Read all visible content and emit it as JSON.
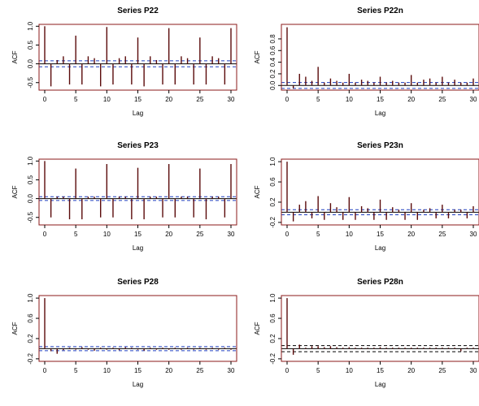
{
  "chart_data": [
    {
      "type": "bar",
      "title": "Series  P22",
      "xlabel": "Lag",
      "ylabel": "ACF",
      "xlim": [
        0,
        30
      ],
      "ylim": [
        -0.7,
        1.05
      ],
      "xticks": [
        0,
        5,
        10,
        15,
        20,
        25,
        30
      ],
      "xtick_labels": [
        "0",
        "5",
        "10",
        "15",
        "20",
        "25",
        "30"
      ],
      "yticks": [
        -0.5,
        0.0,
        0.5,
        1.0
      ],
      "ytick_labels": [
        "-0.5",
        "0.0",
        "0.5",
        "1.0"
      ],
      "conf_upper": 0.08,
      "conf_lower": -0.08,
      "colors": {
        "frame": "#8b1a1a",
        "bars": "#5a0a0a",
        "conf": "#1f3fbf"
      },
      "lags": [
        0,
        1,
        2,
        3,
        4,
        5,
        6,
        7,
        8,
        9,
        10,
        11,
        12,
        13,
        14,
        15,
        16,
        17,
        18,
        19,
        20,
        21,
        22,
        23,
        24,
        25,
        26,
        27,
        28,
        29,
        30
      ],
      "values": [
        1.0,
        -0.6,
        0.1,
        0.2,
        -0.55,
        0.75,
        -0.55,
        0.2,
        0.15,
        -0.6,
        0.98,
        -0.55,
        0.15,
        0.2,
        -0.55,
        0.7,
        -0.6,
        0.2,
        0.1,
        -0.55,
        0.95,
        -0.55,
        0.2,
        0.15,
        -0.55,
        0.7,
        -0.55,
        0.2,
        0.15,
        -0.55,
        0.95
      ]
    },
    {
      "type": "bar",
      "title": "Series  P22n",
      "xlabel": "Lag",
      "ylabel": "ACF",
      "xlim": [
        0,
        30
      ],
      "ylim": [
        -0.08,
        1.05
      ],
      "xticks": [
        0,
        5,
        10,
        15,
        20,
        25,
        30
      ],
      "xtick_labels": [
        "0",
        "5",
        "10",
        "15",
        "20",
        "25",
        "30"
      ],
      "yticks": [
        0.0,
        0.2,
        0.4,
        0.6,
        0.8
      ],
      "ytick_labels": [
        "0.0",
        "0.2",
        "0.4",
        "0.6",
        "0.8"
      ],
      "conf_upper": 0.05,
      "conf_lower": -0.05,
      "colors": {
        "frame": "#8b1a1a",
        "bars": "#5a0a0a",
        "conf": "#1f3fbf"
      },
      "lags": [
        0,
        1,
        2,
        3,
        4,
        5,
        6,
        7,
        8,
        9,
        10,
        11,
        12,
        13,
        14,
        15,
        16,
        17,
        18,
        19,
        20,
        21,
        22,
        23,
        24,
        25,
        26,
        27,
        28,
        29,
        30
      ],
      "values": [
        1.0,
        -0.05,
        0.2,
        0.15,
        0.08,
        0.32,
        0.05,
        0.12,
        0.08,
        0.05,
        0.2,
        0.05,
        0.1,
        0.08,
        0.05,
        0.15,
        0.05,
        0.08,
        0.05,
        0.05,
        0.18,
        0.05,
        0.1,
        0.12,
        0.05,
        0.15,
        0.05,
        0.1,
        0.05,
        0.05,
        0.12
      ]
    },
    {
      "type": "bar",
      "title": "Series  P23",
      "xlabel": "Lag",
      "ylabel": "ACF",
      "xlim": [
        0,
        30
      ],
      "ylim": [
        -0.7,
        1.05
      ],
      "xticks": [
        0,
        5,
        10,
        15,
        20,
        25,
        30
      ],
      "xtick_labels": [
        "0",
        "5",
        "10",
        "15",
        "20",
        "25",
        "30"
      ],
      "yticks": [
        -0.5,
        0.0,
        0.5,
        1.0
      ],
      "ytick_labels": [
        "-0.5",
        "0.0",
        "0.5",
        "1.0"
      ],
      "conf_upper": 0.05,
      "conf_lower": -0.05,
      "colors": {
        "frame": "#8b1a1a",
        "bars": "#5a0a0a",
        "conf": "#1f3fbf"
      },
      "lags": [
        0,
        1,
        2,
        3,
        4,
        5,
        6,
        7,
        8,
        9,
        10,
        11,
        12,
        13,
        14,
        15,
        16,
        17,
        18,
        19,
        20,
        21,
        22,
        23,
        24,
        25,
        26,
        27,
        28,
        29,
        30
      ],
      "values": [
        1.0,
        -0.5,
        0.05,
        0.05,
        -0.55,
        0.8,
        -0.55,
        0.05,
        0.05,
        -0.5,
        0.92,
        -0.5,
        0.05,
        0.05,
        -0.55,
        0.82,
        -0.55,
        0.05,
        0.05,
        -0.5,
        0.92,
        -0.5,
        0.05,
        0.05,
        -0.5,
        0.8,
        -0.55,
        0.05,
        0.05,
        -0.5,
        0.92
      ]
    },
    {
      "type": "bar",
      "title": "Series  P23n",
      "xlabel": "Lag",
      "ylabel": "ACF",
      "xlim": [
        0,
        30
      ],
      "ylim": [
        -0.25,
        1.05
      ],
      "xticks": [
        0,
        5,
        10,
        15,
        20,
        25,
        30
      ],
      "xtick_labels": [
        "0",
        "5",
        "10",
        "15",
        "20",
        "25",
        "30"
      ],
      "yticks": [
        -0.2,
        0.2,
        0.6,
        1.0
      ],
      "ytick_labels": [
        "-0.2",
        "0.2",
        "0.6",
        "1.0"
      ],
      "conf_upper": 0.05,
      "conf_lower": -0.05,
      "colors": {
        "frame": "#8b1a1a",
        "bars": "#5a0a0a",
        "conf": "#1f3fbf"
      },
      "lags": [
        0,
        1,
        2,
        3,
        4,
        5,
        6,
        7,
        8,
        9,
        10,
        11,
        12,
        13,
        14,
        15,
        16,
        17,
        18,
        19,
        20,
        21,
        22,
        23,
        24,
        25,
        26,
        27,
        28,
        29,
        30
      ],
      "values": [
        1.0,
        -0.18,
        0.15,
        0.22,
        -0.12,
        0.32,
        -0.15,
        0.18,
        0.1,
        -0.15,
        0.3,
        -0.15,
        0.12,
        0.08,
        -0.15,
        0.25,
        -0.15,
        0.1,
        0.05,
        -0.15,
        0.18,
        -0.15,
        0.05,
        0.08,
        -0.12,
        0.15,
        -0.12,
        0.05,
        0.05,
        -0.12,
        0.12
      ]
    },
    {
      "type": "bar",
      "title": "Series  P28",
      "xlabel": "Lag",
      "ylabel": "ACF",
      "xlim": [
        0,
        30
      ],
      "ylim": [
        -0.25,
        1.05
      ],
      "xticks": [
        0,
        5,
        10,
        15,
        20,
        25,
        30
      ],
      "xtick_labels": [
        "0",
        "5",
        "10",
        "15",
        "20",
        "25",
        "30"
      ],
      "yticks": [
        -0.2,
        0.2,
        0.6,
        1.0
      ],
      "ytick_labels": [
        "-0.2",
        "0.2",
        "0.6",
        "1.0"
      ],
      "conf_upper": 0.04,
      "conf_lower": -0.04,
      "colors": {
        "frame": "#8b1a1a",
        "bars": "#5a0a0a",
        "conf": "#1f3fbf"
      },
      "lags": [
        0,
        1,
        2,
        3,
        4,
        5,
        6,
        7,
        8,
        9,
        10,
        11,
        12,
        13,
        14,
        15,
        16,
        17,
        18,
        19,
        20,
        21,
        22,
        23,
        24,
        25,
        26,
        27,
        28,
        29,
        30
      ],
      "values": [
        1.0,
        -0.05,
        -0.1,
        -0.03,
        0.02,
        -0.02,
        0.03,
        -0.02,
        -0.04,
        0.02,
        -0.02,
        0.02,
        -0.03,
        0.03,
        0.02,
        -0.02,
        -0.04,
        0.02,
        -0.02,
        0.02,
        -0.02,
        0.02,
        -0.02,
        0.02,
        -0.02,
        0.02,
        -0.02,
        0.02,
        -0.02,
        0.02,
        -0.02
      ]
    },
    {
      "type": "bar",
      "title": "Series  P28n",
      "xlabel": "Lag",
      "ylabel": "ACF",
      "xlim": [
        0,
        30
      ],
      "ylim": [
        -0.25,
        1.05
      ],
      "xticks": [
        0,
        5,
        10,
        15,
        20,
        25,
        30
      ],
      "xtick_labels": [
        "0",
        "5",
        "10",
        "15",
        "20",
        "25",
        "30"
      ],
      "yticks": [
        -0.2,
        0.2,
        0.6,
        1.0
      ],
      "ytick_labels": [
        "-0.2",
        "0.2",
        "0.6",
        "1.0"
      ],
      "conf_upper": 0.06,
      "conf_lower": -0.06,
      "colors": {
        "frame": "#8b1a1a",
        "bars": "#5a0a0a",
        "conf": "#000000"
      },
      "lags": [
        0,
        1,
        2,
        3,
        4,
        5,
        6,
        7,
        8,
        9,
        10,
        11,
        12,
        13,
        14,
        15,
        16,
        17,
        18,
        19,
        20,
        21,
        22,
        23,
        24,
        25,
        26,
        27,
        28,
        29,
        30
      ],
      "values": [
        1.0,
        -0.12,
        0.08,
        0.02,
        0.05,
        0.05,
        0.03,
        0.05,
        0.03,
        0.02,
        0.03,
        0.02,
        0.02,
        0.02,
        0.02,
        0.03,
        0.02,
        0.02,
        0.02,
        0.02,
        0.02,
        0.02,
        0.02,
        0.02,
        0.02,
        0.02,
        0.02,
        0.02,
        -0.05,
        0.02,
        0.02
      ]
    }
  ]
}
